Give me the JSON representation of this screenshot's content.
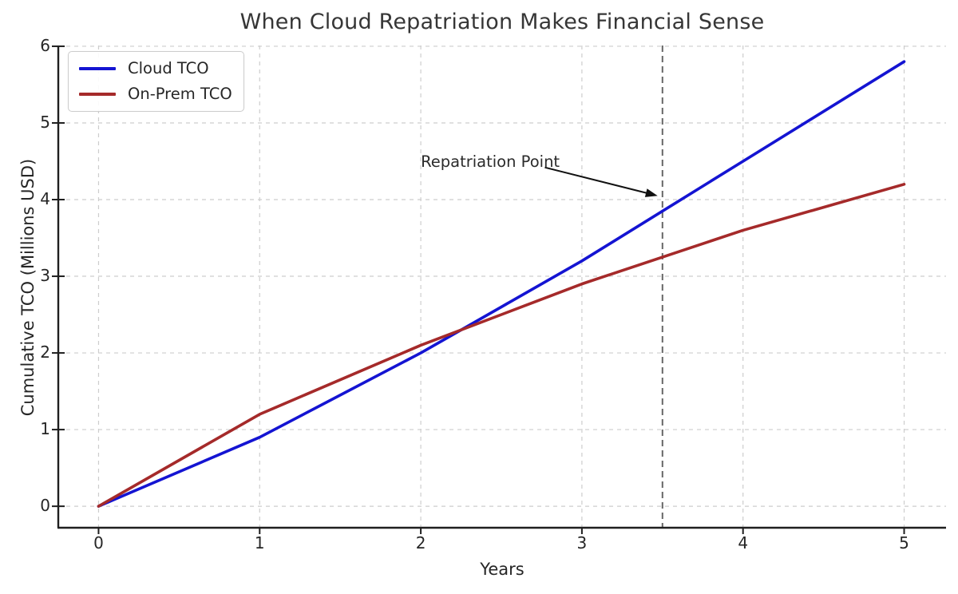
{
  "title": "When Cloud Repatriation Makes Financial Sense",
  "chart_data": {
    "type": "line",
    "title": "When Cloud Repatriation Makes Financial Sense",
    "xlabel": "Years",
    "ylabel": "Cumulative TCO (Millions USD)",
    "x": [
      0,
      1,
      2,
      3,
      4,
      5
    ],
    "series": [
      {
        "name": "Cloud TCO",
        "color": "#1414d2",
        "values": [
          0,
          0.9,
          2.0,
          3.2,
          4.5,
          5.8
        ]
      },
      {
        "name": "On-Prem TCO",
        "color": "#a52a2a",
        "values": [
          0,
          1.2,
          2.1,
          2.9,
          3.6,
          4.2
        ]
      }
    ],
    "x_ticks": [
      "0",
      "1",
      "2",
      "3",
      "4",
      "5"
    ],
    "y_ticks": [
      "0",
      "1",
      "2",
      "3",
      "4",
      "5",
      "6"
    ],
    "xlim": [
      -0.25,
      5.26
    ],
    "ylim": [
      -0.28,
      6.01
    ],
    "grid": true,
    "grid_style": "dashed",
    "legend_position": "upper left",
    "crossover_point": {
      "x": 2.25,
      "y": 2.3
    },
    "vline": {
      "x": 3.5,
      "style": "dashed",
      "color": "#666666"
    },
    "annotation": {
      "text": "Repatriation Point",
      "text_position": {
        "x": 2.0,
        "y": 4.55
      },
      "arrow_start": {
        "x": 2.77,
        "y": 4.42
      },
      "arrow_end": {
        "x": 3.47,
        "y": 4.05
      },
      "arrow_color": "#111111"
    }
  },
  "legend": {
    "items": [
      {
        "label": "Cloud TCO",
        "color": "#1414d2"
      },
      {
        "label": "On-Prem TCO",
        "color": "#a52a2a"
      }
    ]
  },
  "colors": {
    "background": "#ffffff",
    "grid": "#cdcdcd",
    "spine": "#1f1f1f",
    "text": "#262626",
    "vline": "#666666"
  }
}
